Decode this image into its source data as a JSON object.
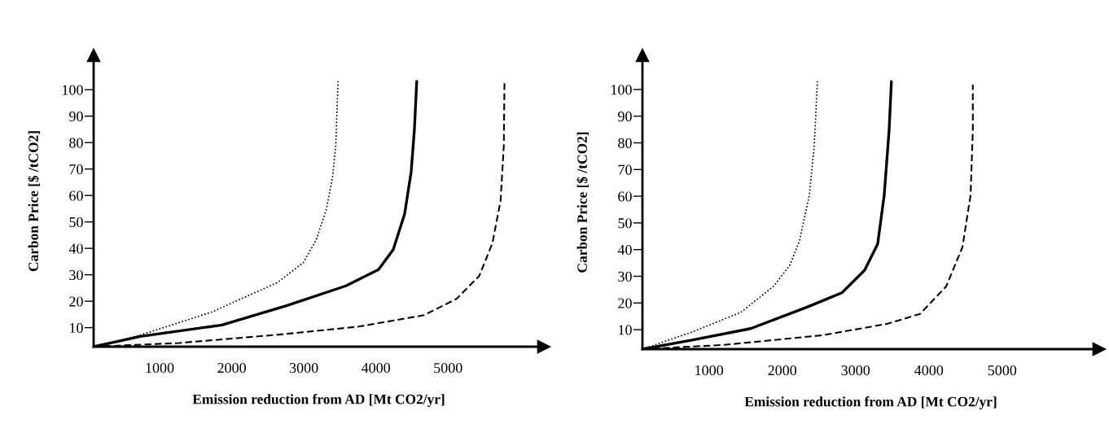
{
  "chart_data": [
    {
      "type": "line",
      "xlabel": "Emission reduction from AD [Mt CO2/yr]",
      "ylabel": "Carbon Price [$ /tCO2]",
      "xlim": [
        85,
        6330
      ],
      "ylim": [
        2.8,
        113
      ],
      "xticks": [
        1000,
        2000,
        3000,
        4000,
        5000
      ],
      "yticks": [
        10,
        20,
        30,
        40,
        50,
        60,
        70,
        80,
        90,
        100
      ],
      "grid": false,
      "series": [
        {
          "color": "#000000",
          "line_style": "dotted",
          "x": [
            86,
            733,
            1724,
            2629,
            2991,
            3172,
            3308,
            3398,
            3443,
            3475
          ],
          "values": [
            2.8,
            7.2,
            15.9,
            27,
            34.5,
            43.2,
            54.3,
            66.7,
            79,
            103.2
          ]
        },
        {
          "color": "#000000",
          "line_style": "solid",
          "x": [
            86,
            733,
            1864,
            2769,
            3584,
            4036,
            4240,
            4398,
            4489,
            4534,
            4566
          ],
          "values": [
            2.8,
            6.7,
            11,
            18.4,
            25.8,
            32,
            39.5,
            53,
            69,
            85,
            103.2
          ]
        },
        {
          "color": "#000000",
          "line_style": "dashed",
          "x": [
            86,
            1271,
            2629,
            3760,
            4665,
            5118,
            5434,
            5615,
            5729,
            5774,
            5783
          ],
          "values": [
            2.8,
            4.2,
            7.3,
            10.4,
            14.7,
            20.9,
            29.6,
            41.9,
            58,
            79,
            102.6
          ]
        }
      ]
    },
    {
      "type": "line",
      "xlabel": "Emission reduction from AD [Mt CO2/yr]",
      "ylabel": "Carbon Price [$ /tCO2]",
      "xlim": [
        93,
        6324
      ],
      "ylim": [
        2.7,
        112.8
      ],
      "xticks": [
        1000,
        2000,
        3000,
        4000,
        5000
      ],
      "yticks": [
        10,
        20,
        30,
        40,
        50,
        60,
        70,
        80,
        90,
        100
      ],
      "grid": false,
      "series": [
        {
          "color": "#000000",
          "line_style": "dotted",
          "x": [
            93,
            769,
            1436,
            1880,
            2102,
            2236,
            2369,
            2436,
            2480
          ],
          "values": [
            2.7,
            9.1,
            16.5,
            26.2,
            34.1,
            43.3,
            60.4,
            78.7,
            103
          ]
        },
        {
          "color": "#000000",
          "line_style": "solid",
          "x": [
            93,
            769,
            1569,
            2324,
            2813,
            3124,
            3302,
            3391,
            3458,
            3489
          ],
          "values": [
            2.7,
            6.1,
            10.4,
            18.3,
            23.8,
            32.3,
            42.1,
            60.4,
            84.8,
            103
          ]
        },
        {
          "color": "#000000",
          "line_style": "dashed",
          "x": [
            93,
            1213,
            2547,
            3436,
            3880,
            4236,
            4458,
            4569,
            4600,
            4600
          ],
          "values": [
            2.7,
            4.3,
            7.9,
            12.2,
            15.9,
            26.2,
            40.9,
            60.4,
            84.8,
            101.8
          ]
        }
      ]
    }
  ]
}
